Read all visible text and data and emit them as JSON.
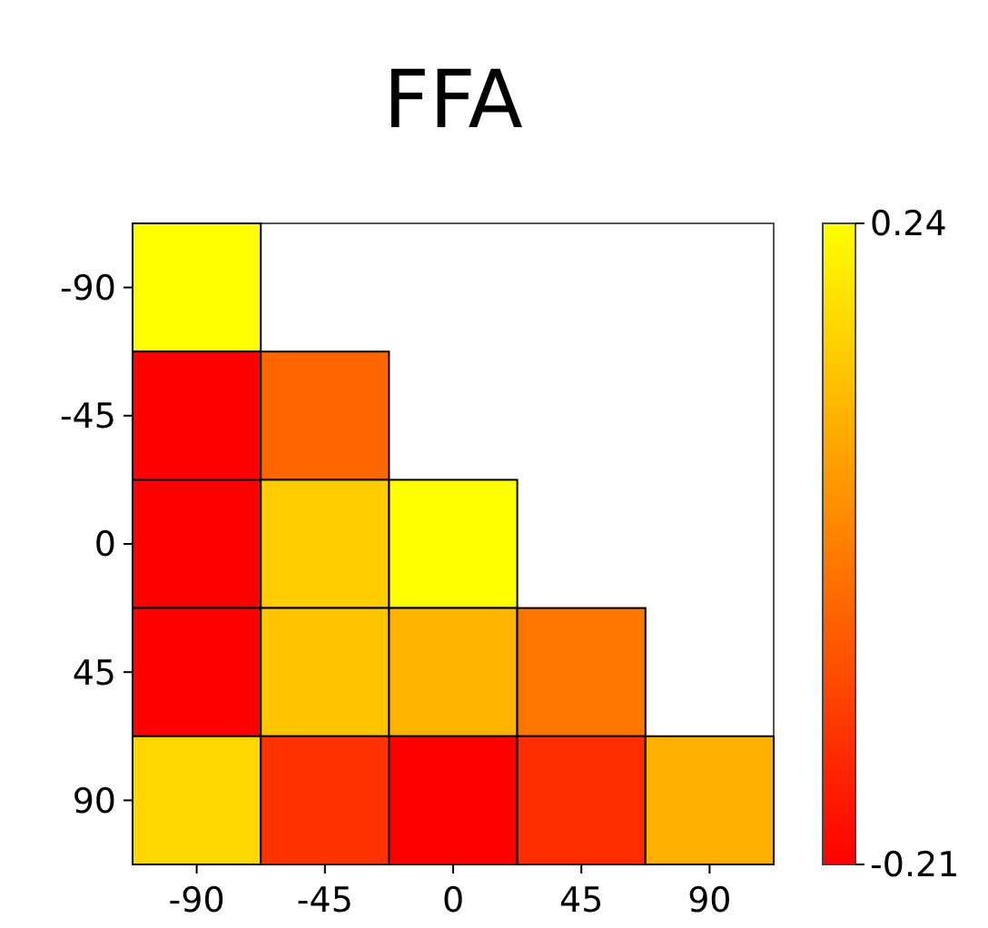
{
  "chart_data": {
    "type": "heatmap",
    "title": "FFA",
    "categories": [
      "-90",
      "-45",
      "0",
      "45",
      "90"
    ],
    "y_categories": [
      "-90",
      "-45",
      "0",
      "45",
      "90"
    ],
    "cells": [
      [
        0.24,
        null,
        null,
        null,
        null
      ],
      [
        -0.21,
        -0.03,
        null,
        null,
        null
      ],
      [
        -0.21,
        0.15,
        0.24,
        null,
        null
      ],
      [
        -0.21,
        0.14,
        0.11,
        0.0,
        null
      ],
      [
        0.17,
        -0.12,
        -0.21,
        -0.13,
        0.1
      ]
    ],
    "clim": [
      -0.21,
      0.24
    ],
    "cticks": [
      -0.21,
      0.24
    ]
  }
}
